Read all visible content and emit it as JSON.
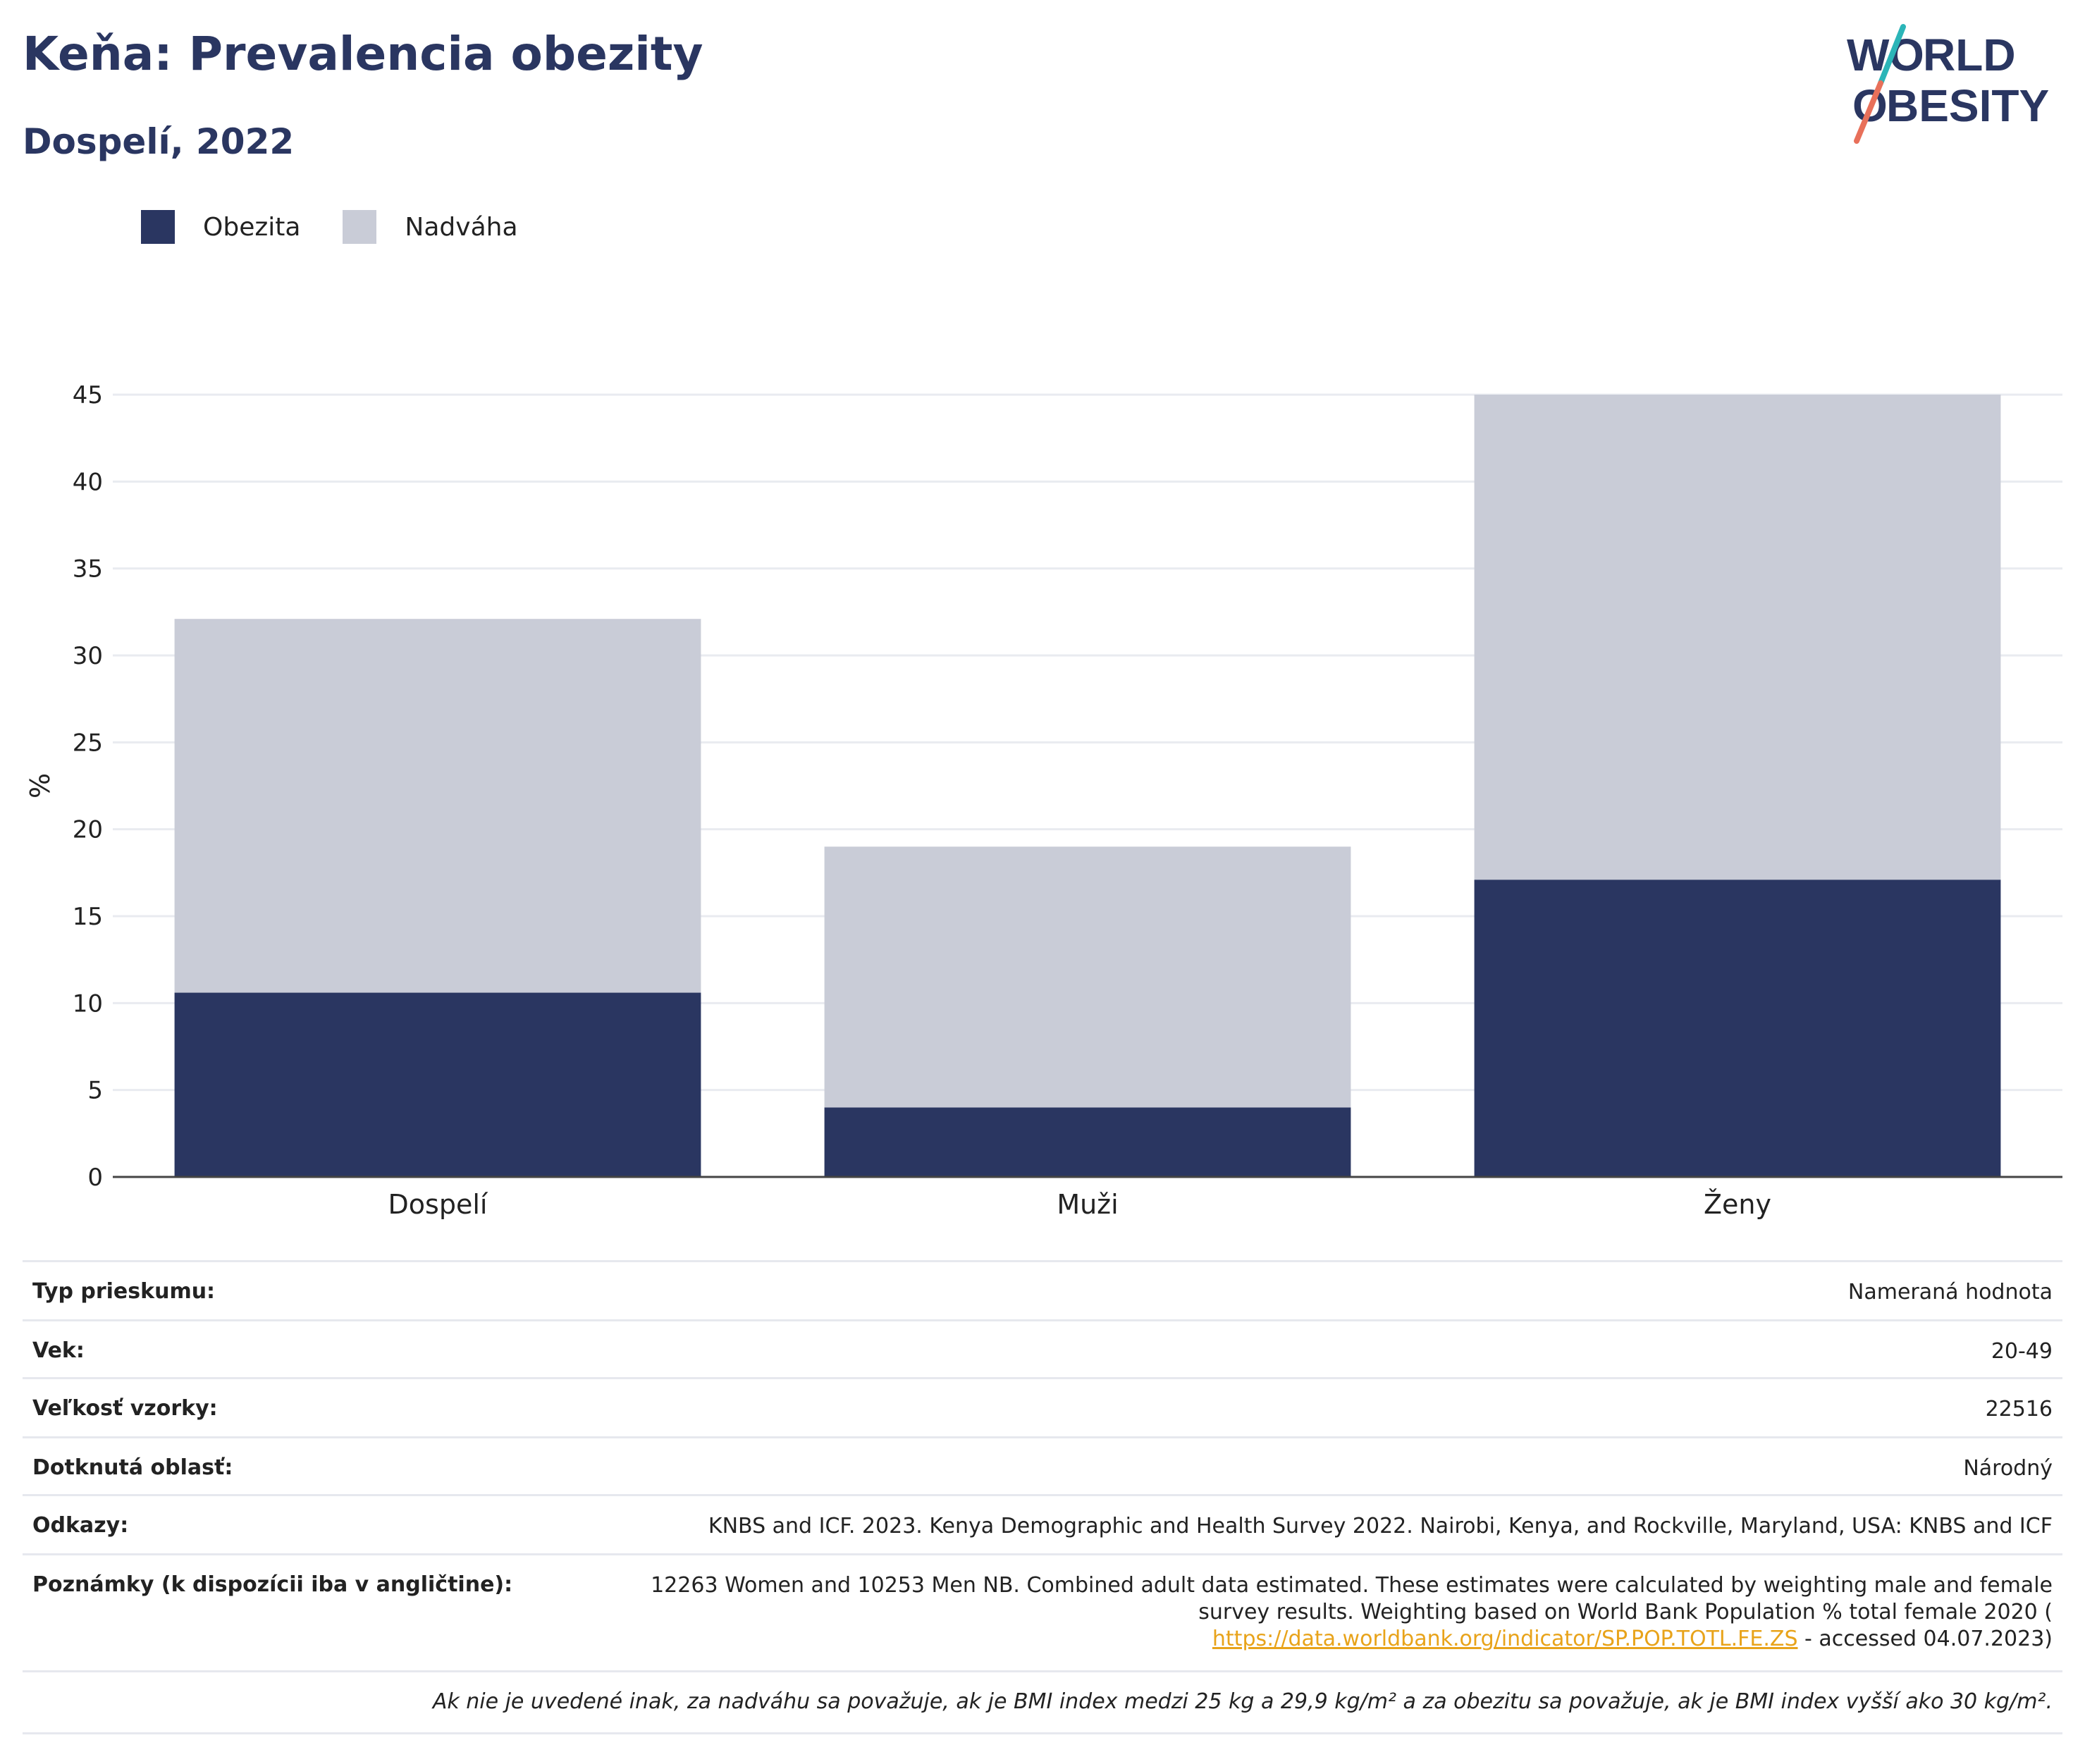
{
  "header": {
    "title": "Keňa: Prevalencia obezity",
    "subtitle": "Dospelí, 2022"
  },
  "logo": {
    "line1": "WORLD",
    "line2": "OBESITY"
  },
  "colors": {
    "obesity": "#2a3661",
    "overweight": "#c9ccd7",
    "brand_teal": "#2bb5b8",
    "brand_coral": "#e8705a"
  },
  "chart_data": {
    "type": "bar",
    "stacked": true,
    "categories": [
      "Dospelí",
      "Muži",
      "Ženy"
    ],
    "series": [
      {
        "name": "Obezita",
        "values": [
          10.6,
          4.0,
          17.1
        ],
        "color": "#2a3661"
      },
      {
        "name": "Nadváha",
        "values": [
          21.5,
          15.0,
          27.9
        ],
        "color": "#c9ccd7"
      }
    ],
    "ylabel": "%",
    "ylim": [
      0,
      45
    ],
    "yticks": [
      0,
      5,
      10,
      15,
      20,
      25,
      30,
      35,
      40,
      45
    ],
    "grid": true,
    "legend_position": "top-left"
  },
  "info": {
    "survey_type": {
      "label": "Typ prieskumu:",
      "value": "Nameraná hodnota"
    },
    "age": {
      "label": "Vek:",
      "value": "20-49"
    },
    "sample_size": {
      "label": "Veľkosť vzorky:",
      "value": "22516"
    },
    "area": {
      "label": "Dotknutá oblasť:",
      "value": "Národný"
    },
    "references": {
      "label": "Odkazy:",
      "value": "KNBS and ICF. 2023. Kenya Demographic and Health Survey 2022. Nairobi, Kenya, and Rockville, Maryland, USA: KNBS and ICF"
    },
    "notes": {
      "label": "Poznámky (k dispozícii iba v angličtine):",
      "line1": "12263 Women and 10253 Men NB. Combined adult data estimated. These estimates were calculated by weighting male and female",
      "line2": "survey results. Weighting based on World Bank Population % total female 2020 (",
      "link": "https://data.worldbank.org/indicator/SP.POP.TOTL.FE.ZS",
      "line3_suffix": " - accessed 04.07.2023)"
    }
  },
  "footnote": "Ak nie je uvedené inak, za nadváhu sa považuje, ak je BMI index medzi 25 kg a 29,9 kg/m² a za obezitu sa považuje, ak je BMI index vyšší ako 30 kg/m²."
}
